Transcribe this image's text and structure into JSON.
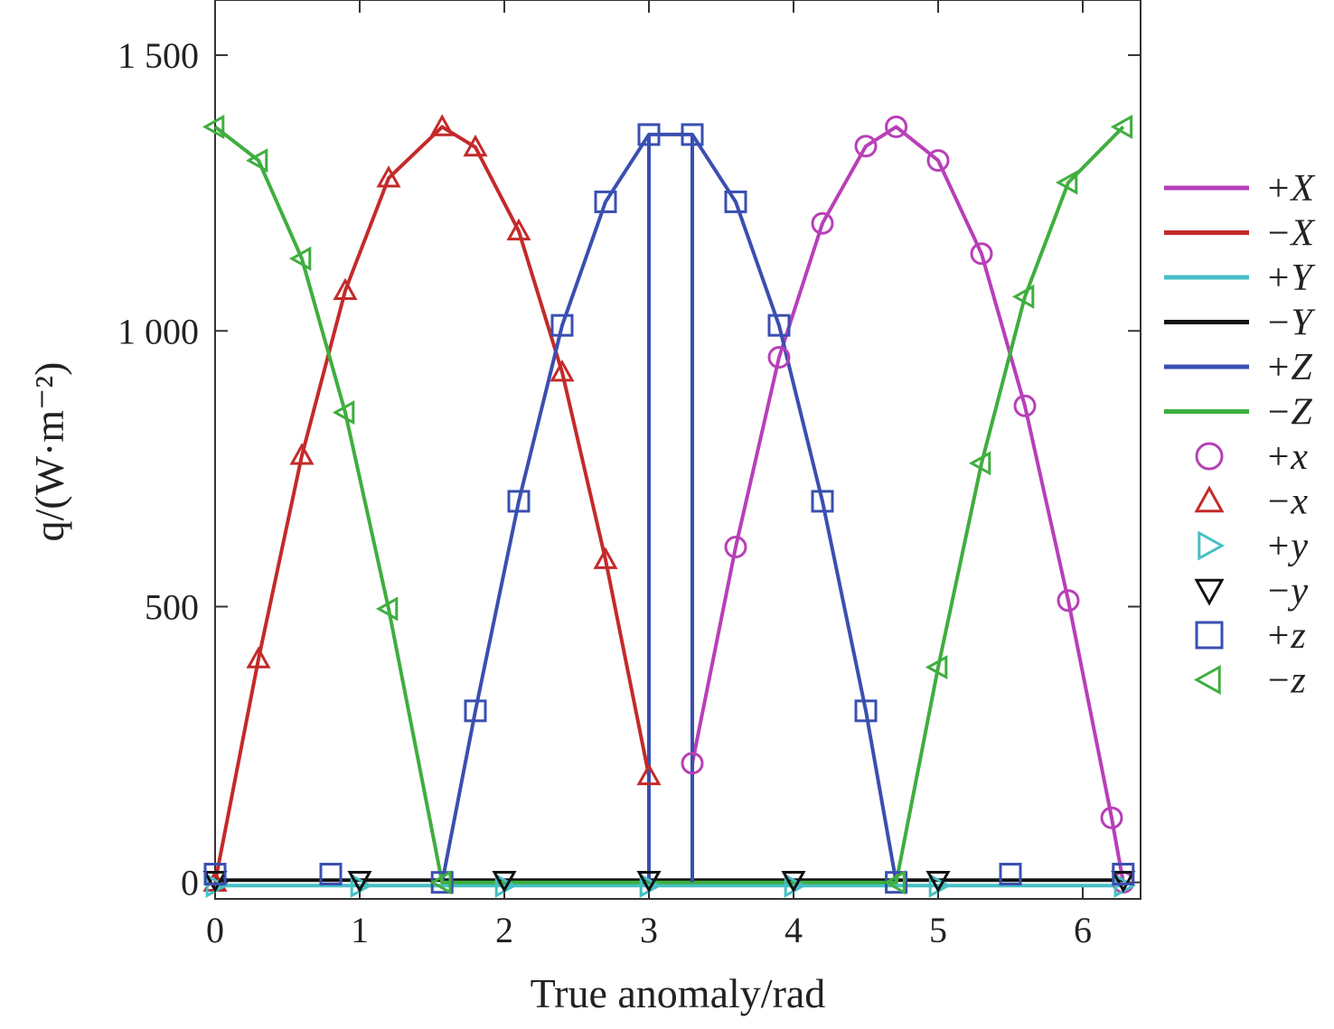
{
  "chart_data": {
    "type": "line",
    "xlabel": "True anomaly/rad",
    "ylabel": "q/(W·m⁻²)",
    "xlim": [
      0,
      6.4
    ],
    "ylim": [
      -30,
      1600
    ],
    "x_ticks": [
      0,
      1,
      2,
      3,
      4,
      5,
      6
    ],
    "y_ticks": [
      0,
      500,
      1000,
      1500
    ],
    "x_tick_labels": [
      "0",
      "1",
      "2",
      "3",
      "4",
      "5",
      "6"
    ],
    "y_tick_labels": [
      "0",
      "500",
      "1 000",
      "1 500"
    ],
    "grid": false,
    "legend_placement": "right, outside plot",
    "eclipse_rad": [
      3.0,
      3.3
    ],
    "solar_peak": 1370,
    "series": [
      {
        "name": "+X",
        "label": "+X",
        "style": "line",
        "color": "#b83fb8",
        "x": [
          3.3,
          3.6,
          3.9,
          4.2,
          4.5,
          4.71,
          5.0,
          5.3,
          5.6,
          5.9,
          6.2,
          6.28
        ],
        "y": [
          216,
          608,
          952,
          1195,
          1335,
          1370,
          1309,
          1140,
          864,
          511,
          117,
          0
        ]
      },
      {
        "name": "−X",
        "label": "−X",
        "style": "line",
        "color": "#c42a2a",
        "x": [
          0,
          0.3,
          0.6,
          0.9,
          1.2,
          1.57,
          1.8,
          2.1,
          2.4,
          2.7,
          3.0
        ],
        "y": [
          0,
          405,
          774,
          1073,
          1277,
          1370,
          1333,
          1181,
          925,
          585,
          193
        ]
      },
      {
        "name": "+Y",
        "label": "+Y",
        "style": "line",
        "color": "#46bfc4",
        "x": [
          0,
          1.0,
          2.0,
          3.0,
          4.0,
          5.0,
          6.28
        ],
        "y": [
          -6,
          -6,
          -6,
          -6,
          -6,
          -6,
          -6
        ]
      },
      {
        "name": "−Y",
        "label": "−Y",
        "style": "line",
        "color": "#111111",
        "x": [
          0,
          1.0,
          2.0,
          3.0,
          4.0,
          5.0,
          6.28
        ],
        "y": [
          4,
          4,
          4,
          4,
          4,
          4,
          4
        ]
      },
      {
        "name": "+Z",
        "label": "+Z",
        "style": "line",
        "color": "#3a4fb0",
        "x": [
          1.57,
          1.8,
          2.1,
          2.4,
          2.7,
          3.0,
          3.3,
          3.6,
          3.9,
          4.2,
          4.5,
          4.71
        ],
        "y": [
          0,
          311,
          691,
          1010,
          1234,
          1356,
          1356,
          1234,
          1010,
          691,
          311,
          0
        ]
      },
      {
        "name": "−Z",
        "label": "−Z",
        "style": "line",
        "color": "#3fae3f",
        "x": [
          0,
          0.3,
          0.6,
          0.9,
          1.2,
          1.57,
          4.71,
          5.0,
          5.3,
          5.6,
          5.9,
          6.28
        ],
        "y": [
          1370,
          1309,
          1131,
          852,
          496,
          0,
          0,
          390,
          760,
          1062,
          1269,
          1370
        ]
      },
      {
        "name": "+x",
        "label": "+x",
        "style": "marker",
        "marker": "circle",
        "color": "#b83fb8",
        "x": [
          3.3,
          3.6,
          3.9,
          4.2,
          4.5,
          4.71,
          5.0,
          5.3,
          5.6,
          5.9,
          6.2,
          6.28
        ],
        "y": [
          216,
          608,
          952,
          1195,
          1335,
          1370,
          1309,
          1140,
          864,
          511,
          117,
          0
        ]
      },
      {
        "name": "−x",
        "label": "−x",
        "style": "marker",
        "marker": "triangle-up",
        "color": "#c42a2a",
        "x": [
          0,
          0.3,
          0.6,
          0.9,
          1.2,
          1.57,
          1.8,
          2.1,
          2.4,
          2.7,
          3.0
        ],
        "y": [
          0,
          405,
          774,
          1073,
          1277,
          1370,
          1333,
          1181,
          925,
          585,
          193
        ]
      },
      {
        "name": "+y",
        "label": "+y",
        "style": "marker",
        "marker": "triangle-right",
        "color": "#46bfc4",
        "x": [
          0,
          1.0,
          2.0,
          3.0,
          4.0,
          5.0,
          6.28
        ],
        "y": [
          -6,
          -6,
          -6,
          -6,
          -6,
          -6,
          -6
        ]
      },
      {
        "name": "−y",
        "label": "−y",
        "style": "marker",
        "marker": "triangle-down",
        "color": "#111111",
        "x": [
          0,
          1.0,
          2.0,
          3.0,
          4.0,
          5.0,
          6.28
        ],
        "y": [
          4,
          4,
          4,
          4,
          4,
          4,
          4
        ]
      },
      {
        "name": "+z",
        "label": "+z",
        "style": "marker",
        "marker": "square",
        "color": "#3a4fb0",
        "x": [
          0,
          0.8,
          1.57,
          1.8,
          2.1,
          2.4,
          2.7,
          3.0,
          3.3,
          3.6,
          3.9,
          4.2,
          4.5,
          4.71,
          5.5,
          6.28
        ],
        "y": [
          15,
          15,
          0,
          311,
          691,
          1010,
          1234,
          1356,
          1356,
          1234,
          1010,
          691,
          311,
          0,
          15,
          15
        ]
      },
      {
        "name": "−z",
        "label": "−z",
        "style": "marker",
        "marker": "triangle-left",
        "color": "#3fae3f",
        "x": [
          0,
          0.3,
          0.6,
          0.9,
          1.2,
          1.57,
          4.71,
          5.0,
          5.3,
          5.6,
          5.9,
          6.28
        ],
        "y": [
          1370,
          1309,
          1131,
          852,
          496,
          0,
          0,
          390,
          760,
          1062,
          1269,
          1370
        ]
      }
    ]
  }
}
